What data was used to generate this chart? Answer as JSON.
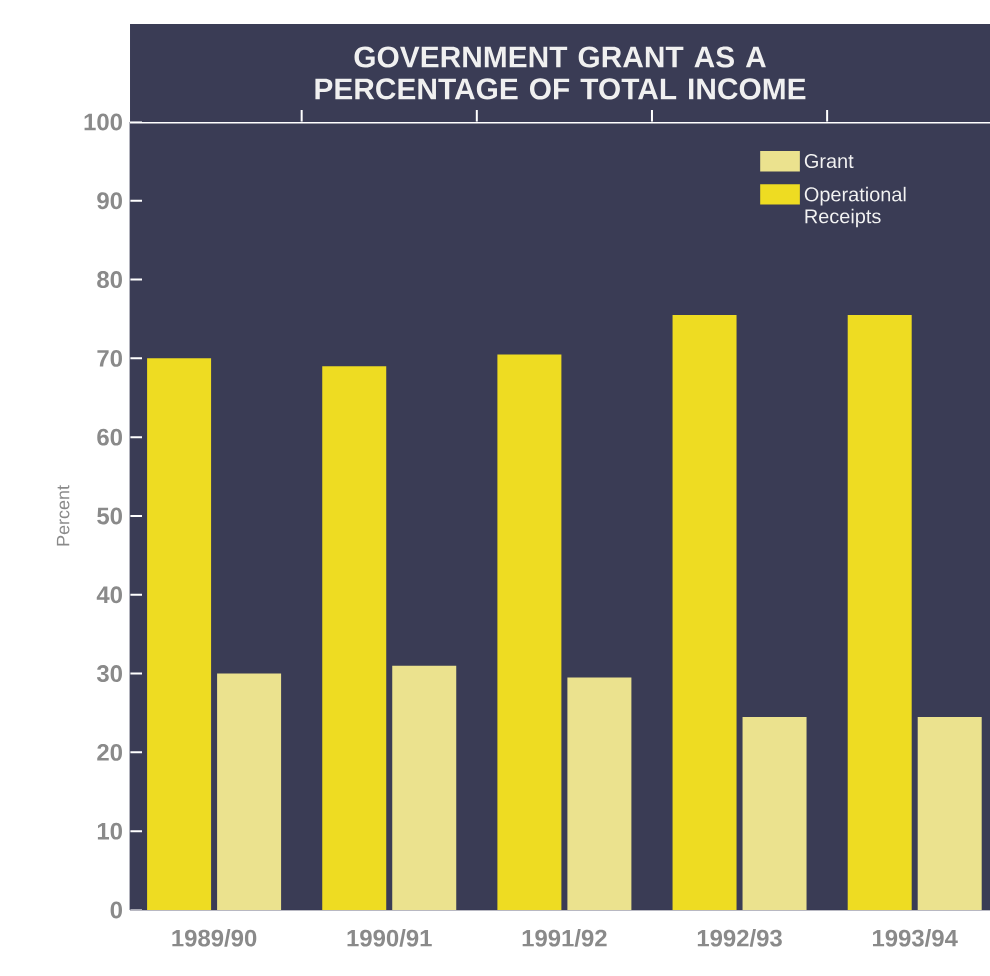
{
  "chart_data": {
    "type": "bar",
    "title": "GOVERNMENT GRANT AS A PERCENTAGE OF TOTAL INCOME",
    "ylabel": "Percent",
    "categories": [
      "1989/90",
      "1990/91",
      "1991/92",
      "1992/93",
      "1993/94"
    ],
    "series": [
      {
        "name": "Operational Receipts",
        "color": "#eedc22",
        "values": [
          70,
          69,
          70.5,
          75.5,
          75.5
        ]
      },
      {
        "name": "Grant",
        "color": "#ebe28e",
        "values": [
          30,
          31,
          29.5,
          24.5,
          24.5
        ]
      }
    ],
    "ylim": [
      0,
      100
    ],
    "yticks": [
      0,
      10,
      20,
      30,
      40,
      50,
      60,
      70,
      80,
      90,
      100
    ],
    "grid": false,
    "legend": "top right"
  }
}
